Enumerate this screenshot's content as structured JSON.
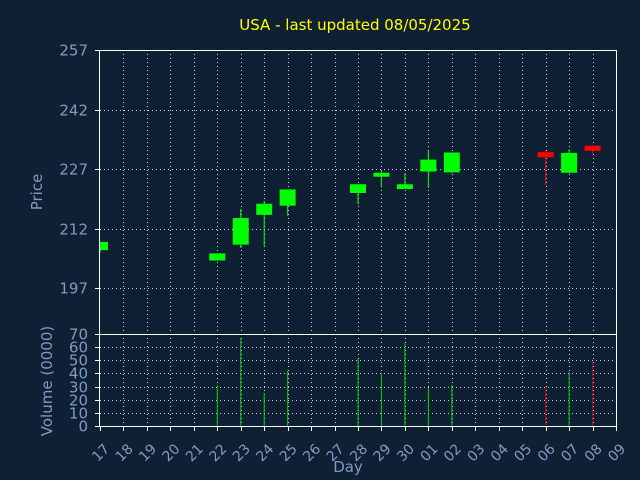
{
  "chart_data": {
    "type": "candlestick",
    "title": "USA - last updated 08/05/2025",
    "price_axis": {
      "label": "Price",
      "ticks": [
        "257",
        "242",
        "227",
        "212",
        "197"
      ],
      "tick_values": [
        257,
        242,
        227,
        212,
        197
      ],
      "range": [
        185.5,
        257
      ]
    },
    "volume_axis": {
      "label": "Volume (0000)",
      "ticks": [
        "70",
        "60",
        "50",
        "40",
        "30",
        "20",
        "10",
        "0"
      ],
      "tick_values": [
        70,
        60,
        50,
        40,
        30,
        20,
        10,
        0
      ],
      "range": [
        0,
        70
      ]
    },
    "x_axis": {
      "label": "Day",
      "tick_labels": [
        "17",
        "18",
        "19",
        "20",
        "21",
        "22",
        "23",
        "24",
        "25",
        "26",
        "27",
        "28",
        "29",
        "30",
        "01",
        "02",
        "03",
        "04",
        "05",
        "06",
        "07",
        "08",
        "09"
      ]
    },
    "grid": true,
    "colors": {
      "background": "#102034",
      "axis": "#ffffff",
      "grid": "#ffffff",
      "up": "#00ff00",
      "down": "#ff0000",
      "volume_up": "#00cc00",
      "volume_down": "#cc0000",
      "text": "#7f9cbf",
      "title": "#ffff00"
    },
    "candles": [
      {
        "day": "17",
        "open": 206.6,
        "high": 208.7,
        "low": 206.0,
        "close": 208.7,
        "volume": null
      },
      {
        "day": "22",
        "open": 204.0,
        "high": 205.8,
        "low": 204.0,
        "close": 205.8,
        "volume": 31
      },
      {
        "day": "23",
        "open": 208.0,
        "high": 217.0,
        "low": 207.2,
        "close": 214.7,
        "volume": 67
      },
      {
        "day": "24",
        "open": 215.5,
        "high": 219.0,
        "low": 207.5,
        "close": 218.3,
        "volume": 25
      },
      {
        "day": "25",
        "open": 217.8,
        "high": 221.9,
        "low": 215.3,
        "close": 221.9,
        "volume": 42
      },
      {
        "day": "28",
        "open": 221.0,
        "high": 223.2,
        "low": 218.1,
        "close": 223.2,
        "volume": 51
      },
      {
        "day": "29",
        "open": 225.1,
        "high": 226.7,
        "low": 222.4,
        "close": 226.1,
        "volume": 40
      },
      {
        "day": "30",
        "open": 222.0,
        "high": 226.0,
        "low": 222.0,
        "close": 223.2,
        "volume": 63
      },
      {
        "day": "01",
        "open": 226.4,
        "high": 231.6,
        "low": 222.3,
        "close": 229.4,
        "volume": 29
      },
      {
        "day": "02",
        "open": 226.2,
        "high": 231.2,
        "low": 226.0,
        "close": 231.2,
        "volume": 31
      },
      {
        "day": "06",
        "open": 231.3,
        "high": 231.8,
        "low": 222.9,
        "close": 230.0,
        "volume": 30
      },
      {
        "day": "07",
        "open": 226.1,
        "high": 232.0,
        "low": 226.0,
        "close": 231.1,
        "volume": 41
      },
      {
        "day": "08",
        "open": 232.9,
        "high": 233.0,
        "low": 230.9,
        "close": 231.6,
        "volume": 48
      }
    ]
  }
}
